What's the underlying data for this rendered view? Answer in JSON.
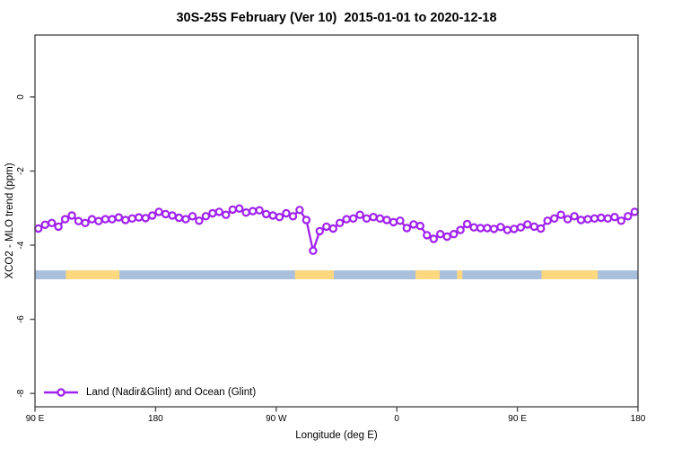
{
  "page": {
    "title": "30S-25S February (Ver 10)  2015-01-01 to 2020-12-18"
  },
  "chart_data": {
    "type": "line",
    "title": "30S-25S February (Ver 10)  2015-01-01 to 2020-12-18",
    "xlabel": "Longitude (deg E)",
    "ylabel": "XCO2 - MLO trend (ppm)",
    "xlim": [
      90,
      540
    ],
    "ylim": [
      -8.36,
      1.67
    ],
    "grid": false,
    "x_ticks": {
      "values": [
        90,
        180,
        270,
        360,
        450,
        540
      ],
      "labels": [
        "90 E",
        "180",
        "90 W",
        "0",
        "90 E",
        "180"
      ]
    },
    "y_ticks": {
      "values": [
        0,
        -2,
        -4,
        -6,
        -8
      ],
      "labels": [
        "0",
        "-2",
        "-4",
        "-6",
        "-8"
      ],
      "rotated": true
    },
    "series": [
      {
        "name": "Land (Nadir&Glint) and Ocean (Glint)",
        "color": "#a020f0",
        "marker": "open-circle",
        "x_start_deg": 92.5,
        "x_step_deg": 5,
        "values": [
          -3.55,
          -3.45,
          -3.4,
          -3.5,
          -3.3,
          -3.2,
          -3.35,
          -3.4,
          -3.3,
          -3.35,
          -3.3,
          -3.3,
          -3.25,
          -3.32,
          -3.28,
          -3.25,
          -3.27,
          -3.2,
          -3.1,
          -3.16,
          -3.2,
          -3.26,
          -3.3,
          -3.22,
          -3.34,
          -3.22,
          -3.14,
          -3.1,
          -3.18,
          -3.04,
          -3.01,
          -3.12,
          -3.08,
          -3.06,
          -3.16,
          -3.2,
          -3.24,
          -3.14,
          -3.22,
          -3.05,
          -3.32,
          -4.15,
          -3.62,
          -3.5,
          -3.55,
          -3.4,
          -3.3,
          -3.28,
          -3.18,
          -3.28,
          -3.24,
          -3.28,
          -3.32,
          -3.38,
          -3.34,
          -3.54,
          -3.44,
          -3.48,
          -3.73,
          -3.83,
          -3.7,
          -3.77,
          -3.7,
          -3.59,
          -3.43,
          -3.52,
          -3.54,
          -3.54,
          -3.56,
          -3.51,
          -3.59,
          -3.56,
          -3.52,
          -3.44,
          -3.5,
          -3.55,
          -3.34,
          -3.28,
          -3.18,
          -3.3,
          -3.22,
          -3.32,
          -3.3,
          -3.28,
          -3.26,
          -3.28,
          -3.24,
          -3.34,
          -3.22,
          -3.1
        ]
      }
    ],
    "band": {
      "y_range_ppm": [
        -4.68,
        -4.92
      ],
      "base_color": "#a9c0dc",
      "highlight_color": "#fdd87f",
      "base_range_deg": [
        90,
        540
      ],
      "highlight_segments_deg": [
        [
          113,
          153
        ],
        [
          284,
          313
        ],
        [
          374,
          392
        ],
        [
          405,
          409
        ],
        [
          468,
          510
        ]
      ]
    },
    "legend": {
      "position": "bottom-left",
      "entries": [
        {
          "label": "Land (Nadir&Glint) and Ocean (Glint)",
          "color": "#a020f0"
        }
      ]
    }
  }
}
